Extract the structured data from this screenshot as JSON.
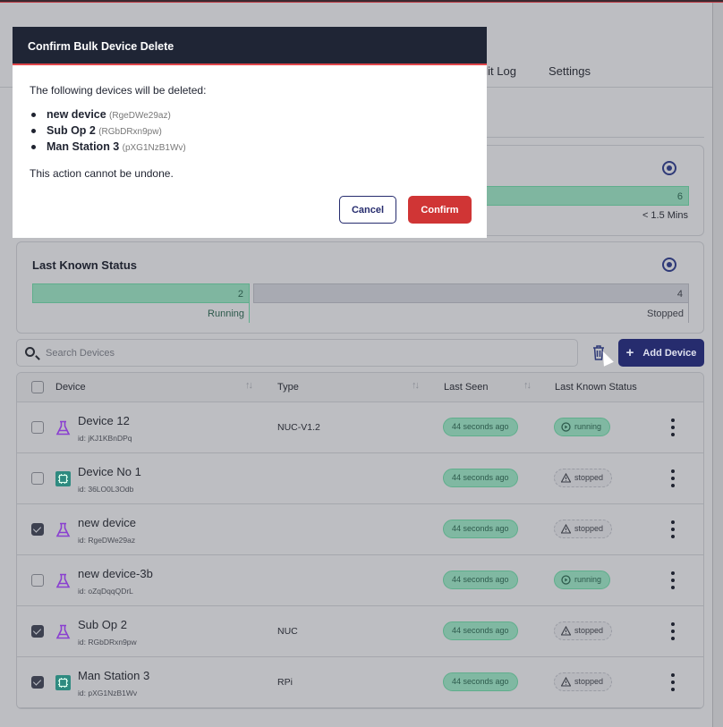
{
  "nav": {
    "tabs": [
      {
        "label": "Audit Log"
      },
      {
        "label": "Settings"
      }
    ]
  },
  "last_seen_card": {
    "bar_value": "6",
    "bar_label": "< 1.5 Mins"
  },
  "status_card": {
    "title": "Last Known Status",
    "segments": [
      {
        "label": "Running",
        "value": "2",
        "color": "#7fb6a0"
      },
      {
        "label": "Stopped",
        "value": "4",
        "color": "#a8aab2"
      }
    ]
  },
  "toolbar": {
    "search_placeholder": "Search Devices",
    "add_label": "Add Device",
    "add_icon": "+"
  },
  "table": {
    "headers": {
      "device": "Device",
      "type": "Type",
      "last_seen": "Last Seen",
      "status": "Last Known Status"
    },
    "rows": [
      {
        "name": "Device 12",
        "id": "id: jKJ1KBnDPq",
        "type": "NUC-V1.2",
        "last_seen": "44 seconds ago",
        "status": "running",
        "checked": false,
        "icon": "flask-icon"
      },
      {
        "name": "Device No 1",
        "id": "id: 36LO0L3Odb",
        "type": "",
        "last_seen": "44 seconds ago",
        "status": "stopped",
        "checked": false,
        "icon": "chip-icon"
      },
      {
        "name": "new device",
        "id": "id: RgeDWe29az",
        "type": "",
        "last_seen": "44 seconds ago",
        "status": "stopped",
        "checked": true,
        "icon": "flask-icon"
      },
      {
        "name": "new device-3b",
        "id": "id: oZqDqqQDrL",
        "type": "",
        "last_seen": "44 seconds ago",
        "status": "running",
        "checked": false,
        "icon": "flask-icon"
      },
      {
        "name": "Sub Op 2",
        "id": "id: RGbDRxn9pw",
        "type": "NUC",
        "last_seen": "44 seconds ago",
        "status": "stopped",
        "checked": true,
        "icon": "flask-icon"
      },
      {
        "name": "Man Station 3",
        "id": "id: pXG1NzB1Wv",
        "type": "RPi",
        "last_seen": "44 seconds ago",
        "status": "stopped",
        "checked": true,
        "icon": "chip-icon"
      }
    ]
  },
  "modal": {
    "title": "Confirm Bulk Device Delete",
    "intro": "The following devices will be deleted:",
    "items": [
      {
        "name": "new device",
        "id": "(RgeDWe29az)"
      },
      {
        "name": "Sub Op 2",
        "id": "(RGbDRxn9pw)"
      },
      {
        "name": "Man Station 3",
        "id": "(pXG1NzB1Wv)"
      }
    ],
    "warning": "This action cannot be undone.",
    "cancel_label": "Cancel",
    "confirm_label": "Confirm"
  }
}
